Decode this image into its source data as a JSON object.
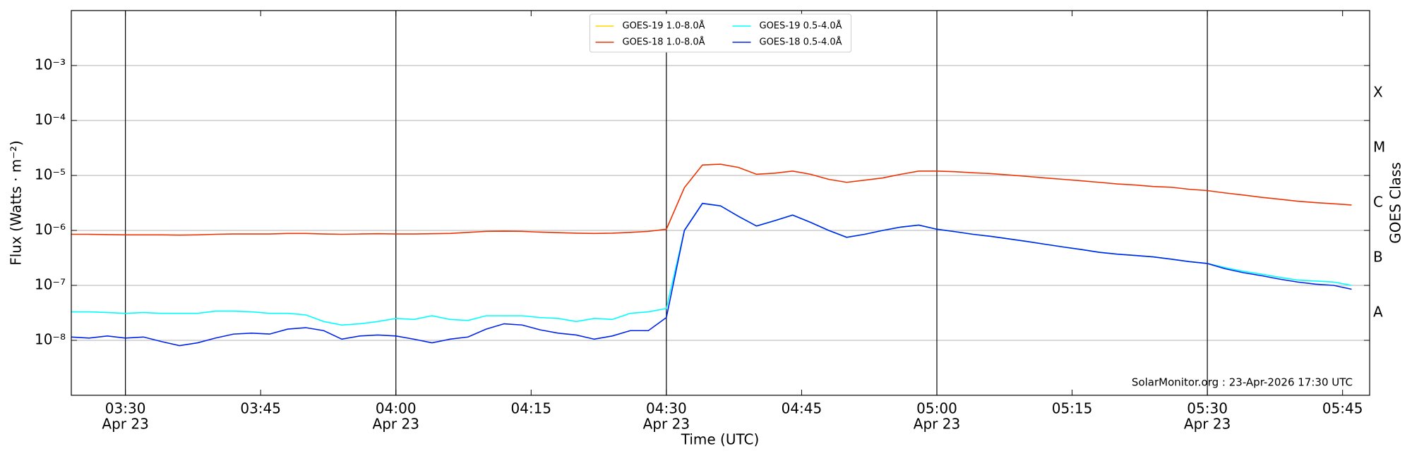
{
  "chart_data": {
    "type": "line",
    "xlabel": "Time (UTC)",
    "ylabel": "Flux (Watts · m⁻²)",
    "y2label": "GOES Class",
    "annotation": "SolarMonitor.org : 23-Apr-2026 17:30 UTC",
    "log_y": true,
    "grid": true,
    "legend": "top center",
    "ylim": [
      1e-09,
      0.01
    ],
    "yticks": [
      {
        "value": 1e-08,
        "label": "10⁻⁸"
      },
      {
        "value": 1e-07,
        "label": "10⁻⁷"
      },
      {
        "value": 1e-06,
        "label": "10⁻⁶"
      },
      {
        "value": 1e-05,
        "label": "10⁻⁵"
      },
      {
        "value": 0.0001,
        "label": "10⁻⁴"
      },
      {
        "value": 0.001,
        "label": "10⁻³"
      }
    ],
    "class_ticks": [
      {
        "value": 3.16e-08,
        "label": "A"
      },
      {
        "value": 3.16e-07,
        "label": "B"
      },
      {
        "value": 3.16e-06,
        "label": "C"
      },
      {
        "value": 3.16e-05,
        "label": "M"
      },
      {
        "value": 0.000316,
        "label": "X"
      }
    ],
    "xlim": [
      "03:24",
      "05:48"
    ],
    "xticks": [
      {
        "value": "03:30",
        "label": [
          "03:30",
          "Apr 23"
        ]
      },
      {
        "value": "03:45",
        "label": [
          "03:45"
        ]
      },
      {
        "value": "04:00",
        "label": [
          "04:00",
          "Apr 23"
        ]
      },
      {
        "value": "04:15",
        "label": [
          "04:15"
        ]
      },
      {
        "value": "04:30",
        "label": [
          "04:30",
          "Apr 23"
        ]
      },
      {
        "value": "04:45",
        "label": [
          "04:45"
        ]
      },
      {
        "value": "05:00",
        "label": [
          "05:00",
          "Apr 23"
        ]
      },
      {
        "value": "05:15",
        "label": [
          "05:15"
        ]
      },
      {
        "value": "05:30",
        "label": [
          "05:30",
          "Apr 23"
        ]
      },
      {
        "value": "05:45",
        "label": [
          "05:45"
        ]
      }
    ],
    "vlines": [
      "03:30",
      "04:00",
      "04:30",
      "05:00",
      "05:30"
    ],
    "x": [
      "03:24",
      "03:26",
      "03:28",
      "03:30",
      "03:32",
      "03:34",
      "03:36",
      "03:38",
      "03:40",
      "03:42",
      "03:44",
      "03:46",
      "03:48",
      "03:50",
      "03:52",
      "03:54",
      "03:56",
      "03:58",
      "04:00",
      "04:02",
      "04:04",
      "04:06",
      "04:08",
      "04:10",
      "04:12",
      "04:14",
      "04:16",
      "04:18",
      "04:20",
      "04:22",
      "04:24",
      "04:26",
      "04:28",
      "04:30",
      "04:32",
      "04:34",
      "04:36",
      "04:38",
      "04:40",
      "04:42",
      "04:44",
      "04:46",
      "04:48",
      "04:50",
      "04:52",
      "04:54",
      "04:56",
      "04:58",
      "05:00",
      "05:02",
      "05:04",
      "05:06",
      "05:08",
      "05:10",
      "05:12",
      "05:14",
      "05:16",
      "05:18",
      "05:20",
      "05:22",
      "05:24",
      "05:26",
      "05:28",
      "05:30",
      "05:32",
      "05:34",
      "05:36",
      "05:38",
      "05:40",
      "05:42",
      "05:44",
      "05:46"
    ],
    "series": [
      {
        "name": "GOES-19 1.0-8.0Å",
        "color": "#ffd700",
        "values": [
          null,
          null,
          null,
          null,
          null,
          null,
          null,
          null,
          null,
          null,
          null,
          null,
          null,
          null,
          null,
          null,
          null,
          null,
          null,
          null,
          null,
          null,
          null,
          null,
          null,
          null,
          null,
          null,
          null,
          null,
          null,
          null,
          null,
          null,
          null,
          null,
          null,
          null,
          null,
          null,
          null,
          null,
          null,
          null,
          null,
          null,
          null,
          null,
          null,
          null,
          null,
          null,
          null,
          null,
          null,
          null,
          null,
          null,
          null,
          null,
          null,
          null,
          null,
          null,
          null,
          null,
          null,
          null,
          null,
          null,
          null,
          null
        ]
      },
      {
        "name": "GOES-18 1.0-8.0Å",
        "color": "#ee3300",
        "values": [
          8.5e-07,
          8.5e-07,
          8.4e-07,
          8.3e-07,
          8.3e-07,
          8.3e-07,
          8.2e-07,
          8.3e-07,
          8.5e-07,
          8.6e-07,
          8.6e-07,
          8.6e-07,
          8.8e-07,
          8.8e-07,
          8.6e-07,
          8.5e-07,
          8.6e-07,
          8.7e-07,
          8.6e-07,
          8.6e-07,
          8.7e-07,
          8.8e-07,
          9.2e-07,
          9.6e-07,
          9.7e-07,
          9.6e-07,
          9.3e-07,
          9.1e-07,
          8.9e-07,
          8.8e-07,
          8.9e-07,
          9.2e-07,
          9.6e-07,
          1.05e-06,
          6e-06,
          1.55e-05,
          1.6e-05,
          1.4e-05,
          1.05e-05,
          1.1e-05,
          1.2e-05,
          1.05e-05,
          8.5e-06,
          7.5e-06,
          8.2e-06,
          9e-06,
          1.05e-05,
          1.2e-05,
          1.2e-05,
          1.17e-05,
          1.12e-05,
          1.08e-05,
          1.02e-05,
          9.6e-06,
          9e-06,
          8.5e-06,
          8e-06,
          7.5e-06,
          7e-06,
          6.7e-06,
          6.3e-06,
          6.1e-06,
          5.6e-06,
          5.3e-06,
          4.8e-06,
          4.4e-06,
          4e-06,
          3.7e-06,
          3.4e-06,
          3.2e-06,
          3.05e-06,
          2.9e-06
        ]
      },
      {
        "name": "GOES-19 0.5-4.0Å",
        "color": "#00ffff",
        "values": [
          3.3e-08,
          3.3e-08,
          3.2e-08,
          3.1e-08,
          3.2e-08,
          3.1e-08,
          3.1e-08,
          3.1e-08,
          3.4e-08,
          3.4e-08,
          3.3e-08,
          3.1e-08,
          3.1e-08,
          2.9e-08,
          2.2e-08,
          1.9e-08,
          2e-08,
          2.2e-08,
          2.5e-08,
          2.4e-08,
          2.8e-08,
          2.4e-08,
          2.3e-08,
          2.8e-08,
          2.8e-08,
          2.8e-08,
          2.6e-08,
          2.5e-08,
          2.2e-08,
          2.5e-08,
          2.4e-08,
          3.1e-08,
          3.3e-08,
          3.8e-08,
          1e-06,
          3.1e-06,
          2.8e-06,
          1.8e-06,
          1.2e-06,
          1.5e-06,
          1.9e-06,
          1.4e-06,
          1e-06,
          7.5e-07,
          8.5e-07,
          1e-06,
          1.15e-06,
          1.25e-06,
          1.05e-06,
          9.5e-07,
          8.5e-07,
          7.8e-07,
          7e-07,
          6.3e-07,
          5.6e-07,
          5e-07,
          4.5e-07,
          4e-07,
          3.7e-07,
          3.5e-07,
          3.3e-07,
          3e-07,
          2.7e-07,
          2.5e-07,
          2.1e-07,
          1.8e-07,
          1.6e-07,
          1.4e-07,
          1.25e-07,
          1.2e-07,
          1.15e-07,
          1e-07
        ]
      },
      {
        "name": "GOES-18 0.5-4.0Å",
        "color": "#0022ee",
        "values": [
          1.15e-08,
          1.1e-08,
          1.2e-08,
          1.1e-08,
          1.15e-08,
          9.5e-09,
          8e-09,
          9e-09,
          1.1e-08,
          1.3e-08,
          1.35e-08,
          1.3e-08,
          1.6e-08,
          1.7e-08,
          1.5e-08,
          1.05e-08,
          1.2e-08,
          1.25e-08,
          1.2e-08,
          1.05e-08,
          9e-09,
          1.05e-08,
          1.15e-08,
          1.6e-08,
          2e-08,
          1.9e-08,
          1.55e-08,
          1.35e-08,
          1.25e-08,
          1.05e-08,
          1.2e-08,
          1.5e-08,
          1.5e-08,
          2.6e-08,
          1e-06,
          3.1e-06,
          2.8e-06,
          1.8e-06,
          1.2e-06,
          1.5e-06,
          1.9e-06,
          1.4e-06,
          1e-06,
          7.5e-07,
          8.5e-07,
          1e-06,
          1.15e-06,
          1.25e-06,
          1.05e-06,
          9.5e-07,
          8.5e-07,
          7.8e-07,
          7e-07,
          6.3e-07,
          5.6e-07,
          5e-07,
          4.5e-07,
          4e-07,
          3.7e-07,
          3.5e-07,
          3.3e-07,
          3e-07,
          2.7e-07,
          2.5e-07,
          2e-07,
          1.7e-07,
          1.5e-07,
          1.3e-07,
          1.15e-07,
          1.05e-07,
          1e-07,
          8.5e-08
        ]
      }
    ]
  }
}
